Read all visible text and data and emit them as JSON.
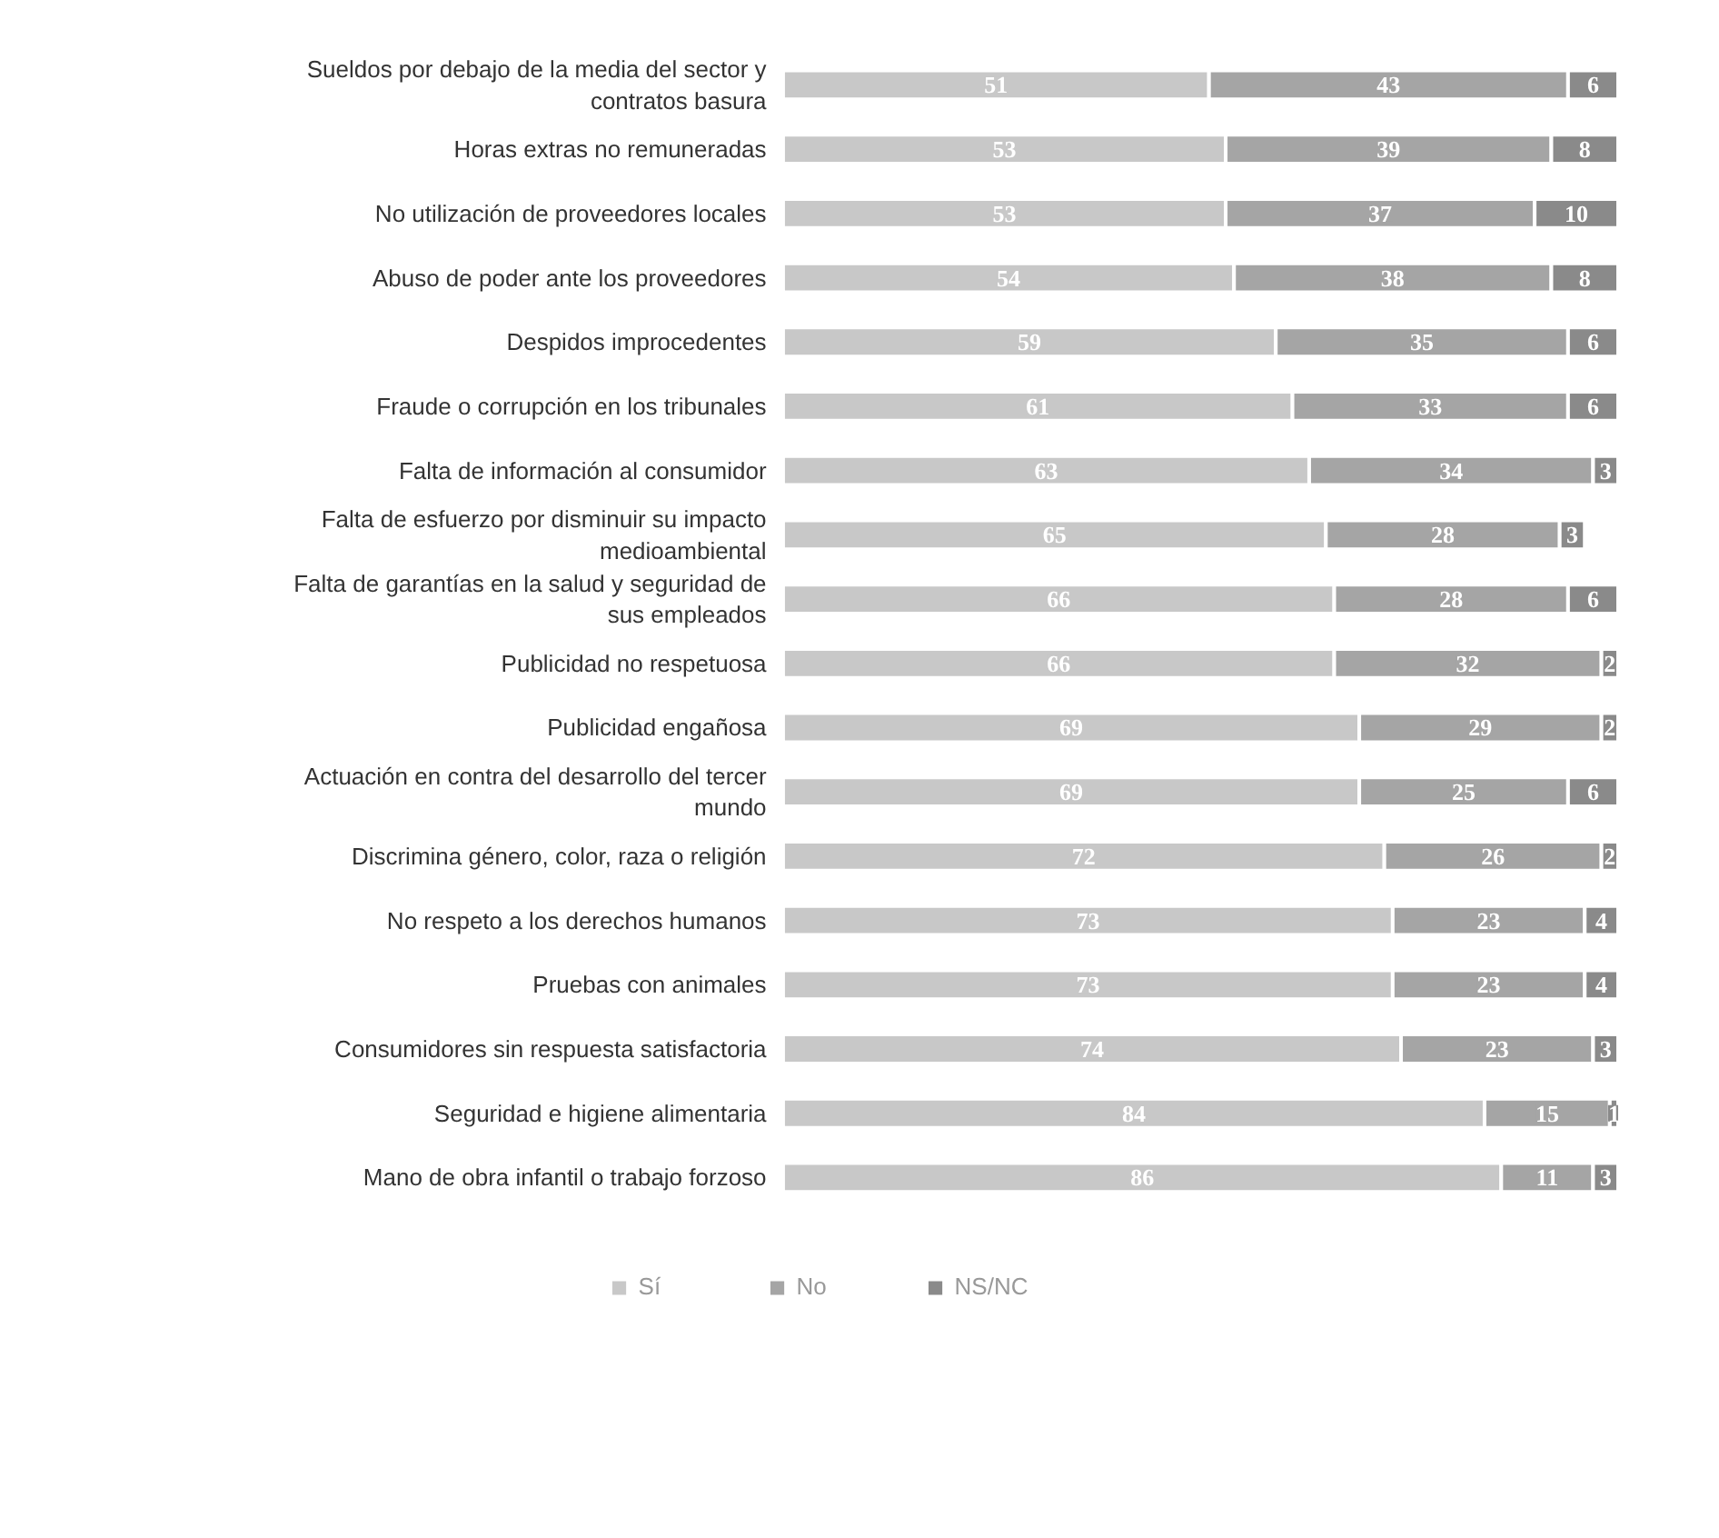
{
  "chart_data": {
    "type": "bar",
    "orientation": "horizontal",
    "stacked": true,
    "data_labels": true,
    "legend": "bottom",
    "grid": false,
    "categories": [
      "Sueldos por debajo de la media del sector y contratos basura",
      "Horas extras no remuneradas",
      "No utilización de proveedores locales",
      "Abuso de poder ante los proveedores",
      "Despidos improcedentes",
      "Fraude o corrupción en los tribunales",
      "Falta de información al consumidor",
      "Falta de esfuerzo por disminuir su impacto medioambiental",
      "Falta de garantías en la salud y seguridad de sus empleados",
      "Publicidad no respetuosa",
      "Publicidad engañosa",
      "Actuación en contra del desarrollo del tercer mundo",
      "Discrimina género, color, raza o religión",
      "No respeto a los derechos humanos",
      "Pruebas con animales",
      "Consumidores sin respuesta satisfactoria",
      "Seguridad e higiene alimentaria",
      "Mano de obra infantil o trabajo forzoso"
    ],
    "series": [
      {
        "name": "Sí",
        "color": "#c8c8c8",
        "values": [
          51,
          53,
          53,
          54,
          59,
          61,
          63,
          65,
          66,
          66,
          69,
          69,
          72,
          73,
          73,
          74,
          84,
          86
        ]
      },
      {
        "name": "No",
        "color": "#a5a5a5",
        "values": [
          43,
          39,
          37,
          38,
          35,
          33,
          34,
          28,
          28,
          32,
          29,
          25,
          26,
          23,
          23,
          23,
          15,
          11
        ]
      },
      {
        "name": "NS/NC",
        "color": "#8a8a8a",
        "values": [
          6,
          8,
          10,
          8,
          6,
          6,
          3,
          3,
          6,
          2,
          2,
          6,
          2,
          4,
          4,
          3,
          1,
          3
        ]
      }
    ]
  }
}
